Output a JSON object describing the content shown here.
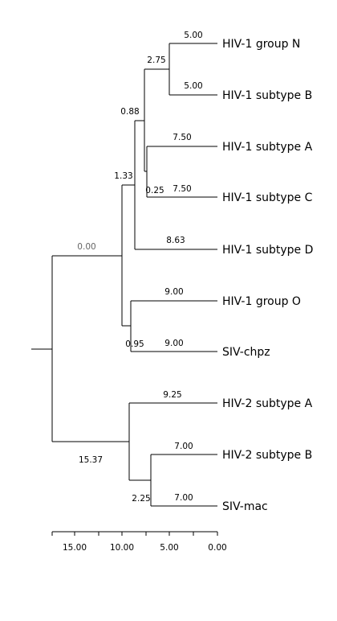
{
  "tree": {
    "leaves": [
      {
        "label": "HIV-1 group N",
        "length": "5.00"
      },
      {
        "label": "HIV-1 subtype B",
        "length": "5.00"
      },
      {
        "label": "HIV-1 subtype A",
        "length": "7.50"
      },
      {
        "label": "HIV-1 subtype C",
        "length": "7.50"
      },
      {
        "label": "HIV-1 subtype D",
        "length": "8.63"
      },
      {
        "label": "HIV-1 group O",
        "length": "9.00"
      },
      {
        "label": "SIV-chpz",
        "length": "9.00"
      },
      {
        "label": "HIV-2 subtype A",
        "length": "9.25"
      },
      {
        "label": "HIV-2 subtype B",
        "length": "7.00"
      },
      {
        "label": "SIV-mac",
        "length": "7.00"
      }
    ],
    "internal": {
      "n_b": "2.75",
      "nbac": "0.25",
      "nbacd": "0.88",
      "h1": "1.33",
      "chpz": "0.95",
      "top": "0.00",
      "hiv2": "15.37",
      "sivmac": "2.25"
    }
  },
  "axis": {
    "ticks": [
      "15.00",
      "10.00",
      "5.00",
      "0.00"
    ]
  }
}
